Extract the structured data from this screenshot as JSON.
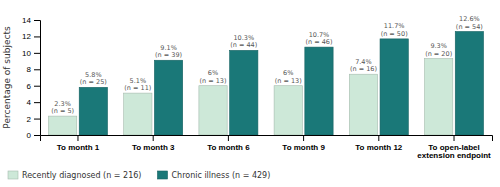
{
  "chart_data": {
    "type": "bar",
    "ylabel": "Percentage of subjects",
    "categories": [
      "To month 1",
      "To month 3",
      "To month 6",
      "To month 9",
      "To month 12",
      "To open-label\nextension endpoint"
    ],
    "series": [
      {
        "name": "Recently diagnosed (n = 216)",
        "color": "#cde8d8",
        "values": [
          2.3,
          5.1,
          6.0,
          6.0,
          7.4,
          9.3
        ],
        "value_labels": [
          "2.3%\n(n = 5)",
          "5.1%\n(n = 11)",
          "6%\n(n = 13)",
          "6%\n(n = 13)",
          "7.4%\n(n = 16)",
          "9.3%\n(n = 20)"
        ]
      },
      {
        "name": "Chronic illness (n = 429)",
        "color": "#1a7878",
        "values": [
          5.8,
          9.1,
          10.3,
          10.7,
          11.7,
          12.6
        ],
        "value_labels": [
          "5.8%\n(n = 25)",
          "9.1%\n(n = 39)",
          "10.3%\n(n = 44)",
          "10.7%\n(n = 46)",
          "11.7%\n(n = 50)",
          "12.6%\n(n = 54)"
        ]
      }
    ],
    "ylim": [
      0,
      14
    ],
    "yticks": [
      0,
      2,
      4,
      6,
      8,
      10,
      12,
      14
    ],
    "grid": false,
    "legend": "bottom",
    "data_labels": true
  }
}
